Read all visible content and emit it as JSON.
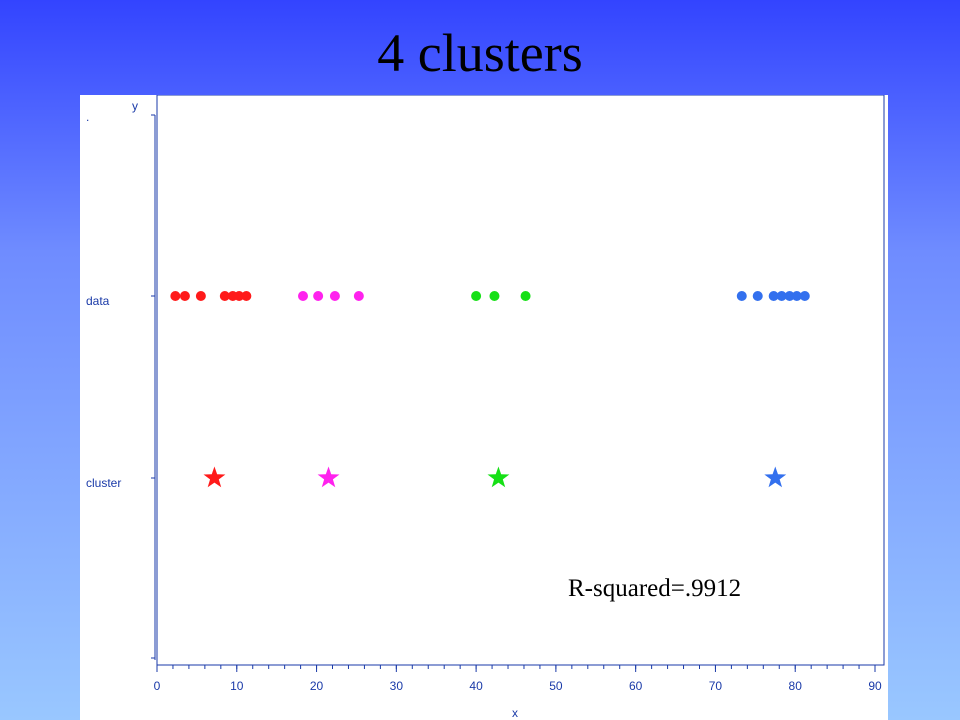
{
  "title": "4 clusters",
  "colors": {
    "axis": "#1a3aa8",
    "cluster_1": "#ff1a1a",
    "cluster_2": "#ff22ee",
    "cluster_3": "#16e016",
    "cluster_4": "#3370ee"
  },
  "chart_data": {
    "type": "scatter",
    "xlabel": "x",
    "ylabel": "y",
    "xlim": [
      0,
      90
    ],
    "x_ticks": [
      0,
      10,
      20,
      30,
      40,
      50,
      60,
      70,
      80,
      90
    ],
    "y_categories": [
      ".",
      "data",
      "cluster"
    ],
    "grid": false,
    "annotation": "R-squared=.9912",
    "series": [
      {
        "color": "#ff1a1a",
        "points_row": "data",
        "points_x": [
          2.3,
          3.5,
          5.5,
          8.5,
          9.5,
          10.3,
          11.2
        ],
        "center_row": "cluster",
        "center_x": 7.2
      },
      {
        "color": "#ff22ee",
        "points_row": "data",
        "points_x": [
          18.3,
          20.2,
          22.3,
          25.3
        ],
        "center_row": "cluster",
        "center_x": 21.5
      },
      {
        "color": "#16e016",
        "points_row": "data",
        "points_x": [
          40.0,
          42.3,
          46.2
        ],
        "center_row": "cluster",
        "center_x": 42.8
      },
      {
        "color": "#3370ee",
        "points_row": "data",
        "points_x": [
          73.3,
          75.3,
          77.3,
          78.3,
          79.3,
          80.2,
          81.2
        ],
        "center_row": "cluster",
        "center_x": 77.5
      }
    ]
  }
}
